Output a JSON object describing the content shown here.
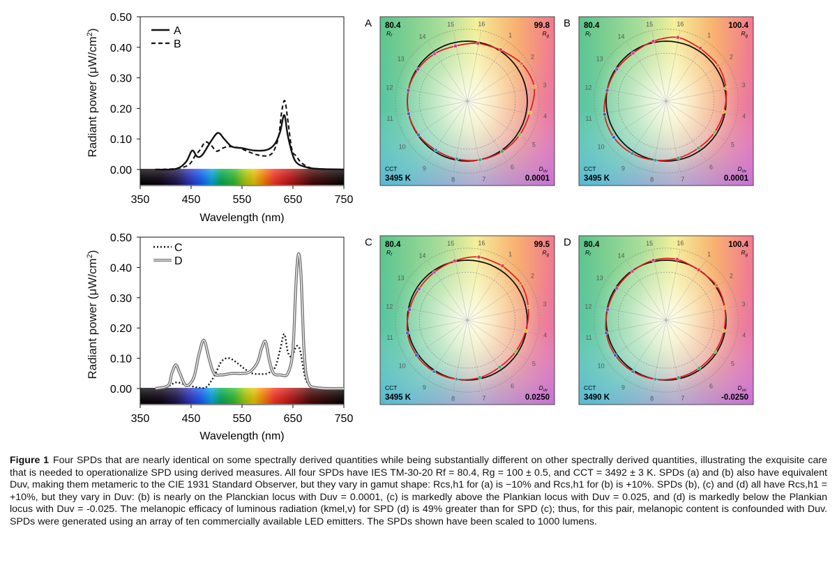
{
  "spd_charts": [
    {
      "ylabel_main": "Radiant power (",
      "ylabel_mu": "μ",
      "ylabel_unit": "W/cm",
      "ylabel_sup": "2",
      "ylabel_close": ")",
      "xlabel": "Wavelength (nm)",
      "xticks": [
        "350",
        "450",
        "550",
        "650",
        "750"
      ],
      "yticks": [
        "0.00",
        "0.10",
        "0.20",
        "0.30",
        "0.40",
        "0.50"
      ],
      "legend": [
        {
          "label": "A",
          "style": "solid"
        },
        {
          "label": "B",
          "style": "dashed"
        }
      ]
    },
    {
      "ylabel_main": "Radiant power (",
      "ylabel_mu": "μ",
      "ylabel_unit": "W/cm",
      "ylabel_sup": "2",
      "ylabel_close": ")",
      "xlabel": "Wavelength (nm)",
      "xticks": [
        "350",
        "450",
        "550",
        "650",
        "750"
      ],
      "yticks": [
        "0.00",
        "0.10",
        "0.20",
        "0.30",
        "0.40",
        "0.50"
      ],
      "legend": [
        {
          "label": "C",
          "style": "dotted"
        },
        {
          "label": "D",
          "style": "double-gray"
        }
      ]
    }
  ],
  "chart_data": [
    {
      "type": "line",
      "xlabel": "Wavelength (nm)",
      "ylabel": "Radiant power (μW/cm2)",
      "xlim": [
        350,
        750
      ],
      "ylim": [
        0,
        0.5
      ],
      "series": [
        {
          "name": "A",
          "x": [
            380,
            420,
            440,
            452,
            462,
            472,
            490,
            503,
            515,
            530,
            550,
            575,
            600,
            615,
            625,
            633,
            640,
            650,
            660,
            680,
            700,
            750
          ],
          "y": [
            0,
            0.002,
            0.025,
            0.062,
            0.042,
            0.048,
            0.095,
            0.12,
            0.1,
            0.075,
            0.07,
            0.062,
            0.065,
            0.085,
            0.125,
            0.178,
            0.11,
            0.045,
            0.018,
            0.006,
            0.002,
            0
          ]
        },
        {
          "name": "B",
          "x": [
            380,
            420,
            445,
            458,
            468,
            478,
            490,
            500,
            515,
            530,
            545,
            560,
            580,
            600,
            612,
            622,
            628,
            634,
            640,
            648,
            656,
            665,
            680,
            700,
            750
          ],
          "y": [
            0,
            0.003,
            0.015,
            0.045,
            0.065,
            0.09,
            0.078,
            0.06,
            0.072,
            0.075,
            0.07,
            0.06,
            0.048,
            0.045,
            0.06,
            0.11,
            0.19,
            0.225,
            0.16,
            0.065,
            0.045,
            0.025,
            0.008,
            0.002,
            0
          ]
        }
      ]
    },
    {
      "type": "line",
      "xlabel": "Wavelength (nm)",
      "ylabel": "Radiant power (μW/cm2)",
      "xlim": [
        350,
        750
      ],
      "ylim": [
        0,
        0.5
      ],
      "series": [
        {
          "name": "C",
          "x": [
            380,
            405,
            420,
            435,
            450,
            465,
            480,
            495,
            510,
            525,
            540,
            555,
            570,
            585,
            600,
            615,
            625,
            633,
            640,
            648,
            655,
            660,
            665,
            675,
            690,
            710,
            750
          ],
          "y": [
            0,
            0.008,
            0.02,
            0.015,
            0.008,
            0.003,
            0.005,
            0.04,
            0.09,
            0.1,
            0.085,
            0.065,
            0.05,
            0.048,
            0.05,
            0.07,
            0.13,
            0.18,
            0.12,
            0.105,
            0.135,
            0.14,
            0.12,
            0.03,
            0.005,
            0.001,
            0
          ]
        },
        {
          "name": "D",
          "x": [
            380,
            405,
            412,
            420,
            428,
            440,
            455,
            465,
            475,
            485,
            495,
            510,
            530,
            550,
            565,
            580,
            588,
            596,
            604,
            612,
            625,
            640,
            650,
            656,
            661,
            666,
            672,
            680,
            700,
            750
          ],
          "y": [
            0,
            0.01,
            0.05,
            0.078,
            0.05,
            0.01,
            0.035,
            0.11,
            0.16,
            0.1,
            0.05,
            0.045,
            0.05,
            0.05,
            0.055,
            0.085,
            0.13,
            0.155,
            0.09,
            0.05,
            0.045,
            0.05,
            0.13,
            0.35,
            0.445,
            0.37,
            0.12,
            0.02,
            0.002,
            0
          ]
        }
      ]
    }
  ],
  "vector_graphics": [
    {
      "panel": "A",
      "rf_value": "80.4",
      "rf_label": "R",
      "rf_sub": "f",
      "rg_value": "99.8",
      "rg_label": "R",
      "rg_sub": "g",
      "cct_label": "CCT",
      "cct_value": "3495 K",
      "duv_label": "D",
      "duv_sub": "uv",
      "duv_value": "0.0001",
      "hue_bins": [
        "1",
        "2",
        "3",
        "4",
        "5",
        "6",
        "7",
        "8",
        "9",
        "10",
        "11",
        "12",
        "13",
        "14",
        "15",
        "16"
      ],
      "test_radii": [
        1.02,
        1.1,
        1.14,
        1.06,
        1.04,
        1.02,
        1.0,
        0.98,
        0.97,
        0.99,
        1.0,
        1.0,
        0.98,
        0.96,
        0.94,
        0.98
      ]
    },
    {
      "panel": "B",
      "rf_value": "80.4",
      "rf_label": "R",
      "rf_sub": "f",
      "rg_value": "100.4",
      "rg_label": "R",
      "rg_sub": "g",
      "cct_label": "CCT",
      "cct_value": "3495 K",
      "duv_label": "D",
      "duv_sub": "uv",
      "duv_value": "0.0001",
      "hue_bins": [
        "1",
        "2",
        "3",
        "4",
        "5",
        "6",
        "7",
        "8",
        "9",
        "10",
        "11",
        "12",
        "13",
        "14",
        "15",
        "16"
      ],
      "test_radii": [
        1.05,
        1.05,
        1.02,
        0.98,
        0.96,
        0.95,
        0.97,
        1.0,
        1.04,
        1.06,
        1.05,
        1.0,
        0.98,
        0.97,
        1.02,
        1.08
      ]
    },
    {
      "panel": "C",
      "rf_value": "80.4",
      "rf_label": "R",
      "rf_sub": "f",
      "rg_value": "99.5",
      "rg_label": "R",
      "rg_sub": "g",
      "cct_label": "CCT",
      "cct_value": "3495 K",
      "duv_label": "D",
      "duv_sub": "uv",
      "duv_value": "0.0250",
      "hue_bins": [
        "1",
        "2",
        "3",
        "4",
        "5",
        "6",
        "7",
        "8",
        "9",
        "10",
        "11",
        "12",
        "13",
        "14",
        "15",
        "16"
      ],
      "test_radii": [
        1.08,
        1.08,
        1.04,
        0.99,
        0.96,
        0.95,
        0.98,
        1.0,
        1.02,
        1.03,
        1.02,
        0.98,
        0.96,
        0.97,
        1.01,
        1.07
      ]
    },
    {
      "panel": "D",
      "rf_value": "80.4",
      "rf_label": "R",
      "rf_sub": "f",
      "rg_value": "100.4",
      "rg_label": "R",
      "rg_sub": "g",
      "cct_label": "CCT",
      "cct_value": "3490 K",
      "duv_label": "D",
      "duv_sub": "uv",
      "duv_value": "-0.0250",
      "hue_bins": [
        "1",
        "2",
        "3",
        "4",
        "5",
        "6",
        "7",
        "8",
        "9",
        "10",
        "11",
        "12",
        "13",
        "14",
        "15",
        "16"
      ],
      "test_radii": [
        1.0,
        1.02,
        1.0,
        0.98,
        0.97,
        0.97,
        0.98,
        1.0,
        1.02,
        1.03,
        1.02,
        0.99,
        0.98,
        0.99,
        1.02,
        1.03
      ]
    }
  ],
  "caption": {
    "figure_label": "Figure 1",
    "text": "Four SPDs that are nearly identical on some spectrally derived quantities while being substantially different on other spectrally derived quantities, illustrating the exquisite care that is needed to operationalize SPD using derived measures. All four SPDs have IES TM-30-20 Rf = 80.4, Rg = 100 ± 0.5, and CCT = 3492 ± 3 K. SPDs (a) and (b) also have equivalent Duv, making them metameric to the CIE 1931 Standard Observer, but they vary in gamut shape: Rcs,h1 for (a) is −10% and Rcs,h1 for (b) is +10%. SPDs (b), (c) and (d) all have Rcs,h1 = +10%, but they vary in Duv: (b) is nearly on the Planckian locus with Duv = 0.0001, (c) is markedly above the Plankian locus with Duv = 0.025, and (d) is markedly below the Plankian locus with Duv = -0.025. The melanopic efficacy of luminous radiation (kmel,v) for SPD (d) is 49% greater than for SPD (c); thus, for this pair, melanopic content is confounded with Duv. SPDs were generated using an array of ten commercially available LED emitters. The SPDs shown have been scaled to 1000 lumens."
  }
}
